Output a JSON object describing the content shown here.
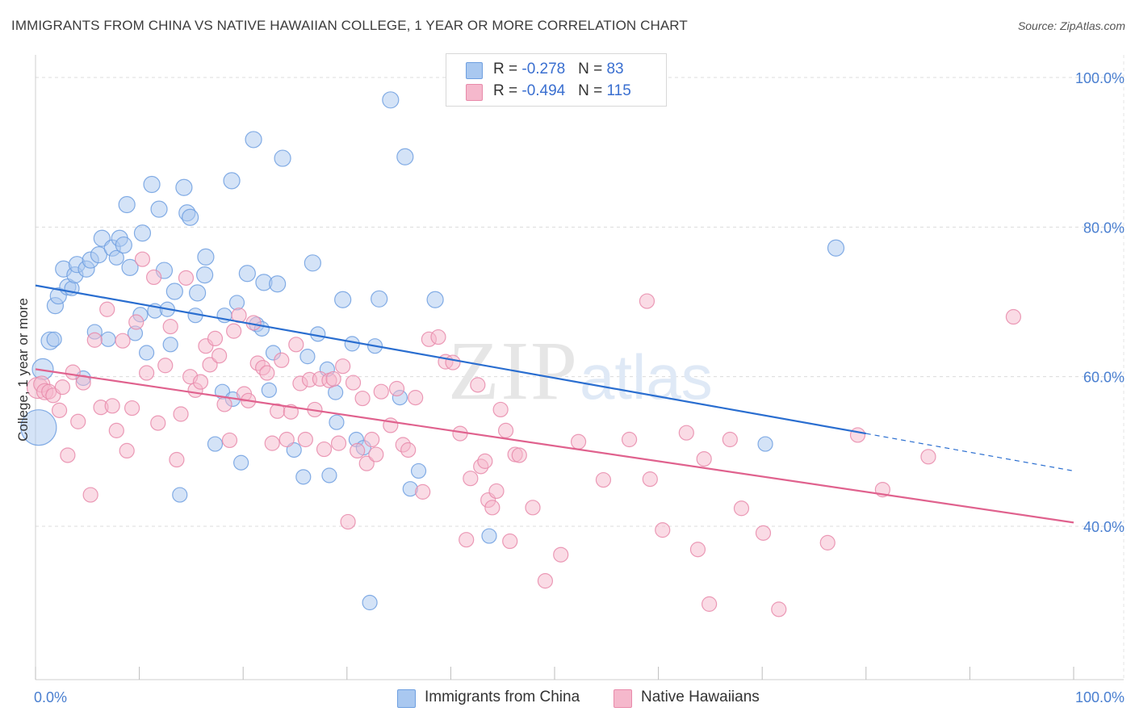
{
  "title": "IMMIGRANTS FROM CHINA VS NATIVE HAWAIIAN COLLEGE, 1 YEAR OR MORE CORRELATION CHART",
  "source": "Source: ZipAtlas.com",
  "watermark": {
    "zip": "ZIP",
    "atlas": "atlas"
  },
  "colors": {
    "blue_fill": "#a9c8f0",
    "blue_stroke": "#6e9fe0",
    "blue_line": "#2a6ed0",
    "pink_fill": "#f5b8cc",
    "pink_stroke": "#e88aaa",
    "pink_line": "#e0628e",
    "tick_label": "#4a7fd0"
  },
  "legend": {
    "rows": [
      {
        "r_label": "R = ",
        "r_value": "-0.278",
        "n_label": "N = ",
        "n_value": "83"
      },
      {
        "r_label": "R = ",
        "r_value": "-0.494",
        "n_label": "N = ",
        "n_value": "115"
      }
    ]
  },
  "chart_data": {
    "type": "scatter",
    "title": "IMMIGRANTS FROM CHINA VS NATIVE HAWAIIAN COLLEGE, 1 YEAR OR MORE CORRELATION CHART",
    "xlabel": "",
    "ylabel": "College, 1 year or more",
    "xlim": [
      0,
      100
    ],
    "ylim": [
      20,
      105
    ],
    "x_tick_labels": [
      "0.0%",
      "100.0%"
    ],
    "y_ticks": [
      {
        "value": 100,
        "label": "100.0%"
      },
      {
        "value": 80,
        "label": "80.0%"
      },
      {
        "value": 60,
        "label": "60.0%"
      },
      {
        "value": 40,
        "label": "40.0%"
      }
    ],
    "grid": true,
    "legend_position": "top-center",
    "series": [
      {
        "name": "Immigrants from China",
        "color": "#a9c8f0",
        "trend": {
          "x0": 0,
          "y0": 72.2,
          "x1": 80,
          "y1": 52.4,
          "dash_to_x": 100,
          "dash_to_y": 47.4
        },
        "points": [
          [
            0.3,
            53.2,
            22
          ],
          [
            0.7,
            61.0,
            13
          ],
          [
            1.4,
            64.8,
            11
          ],
          [
            1.8,
            65.0,
            9
          ],
          [
            1.9,
            69.5,
            10
          ],
          [
            2.2,
            70.8,
            10
          ],
          [
            2.7,
            74.4,
            10
          ],
          [
            3.1,
            72.0,
            10
          ],
          [
            3.5,
            71.8,
            9
          ],
          [
            3.8,
            73.6,
            10
          ],
          [
            4.0,
            75.0,
            10
          ],
          [
            4.6,
            59.8,
            9
          ],
          [
            4.9,
            74.4,
            10
          ],
          [
            5.3,
            75.6,
            10
          ],
          [
            5.7,
            66.0,
            9
          ],
          [
            6.1,
            76.3,
            10
          ],
          [
            6.4,
            78.5,
            10
          ],
          [
            7.0,
            65.0,
            9
          ],
          [
            7.4,
            77.2,
            10
          ],
          [
            7.8,
            75.9,
            9
          ],
          [
            8.1,
            78.5,
            10
          ],
          [
            8.5,
            77.6,
            10
          ],
          [
            8.8,
            83.0,
            10
          ],
          [
            9.1,
            74.6,
            10
          ],
          [
            9.6,
            65.8,
            9
          ],
          [
            10.1,
            68.3,
            9
          ],
          [
            10.3,
            79.2,
            10
          ],
          [
            10.7,
            63.2,
            9
          ],
          [
            11.2,
            85.7,
            10
          ],
          [
            11.5,
            68.8,
            9
          ],
          [
            11.9,
            82.4,
            10
          ],
          [
            12.4,
            74.2,
            10
          ],
          [
            12.7,
            69.0,
            9
          ],
          [
            13.0,
            64.3,
            9
          ],
          [
            13.4,
            71.4,
            10
          ],
          [
            13.9,
            44.2,
            9
          ],
          [
            14.3,
            85.3,
            10
          ],
          [
            14.6,
            81.9,
            10
          ],
          [
            14.9,
            81.3,
            10
          ],
          [
            15.4,
            68.2,
            9
          ],
          [
            15.6,
            71.2,
            10
          ],
          [
            16.3,
            73.6,
            10
          ],
          [
            16.4,
            76.0,
            10
          ],
          [
            17.3,
            51.0,
            9
          ],
          [
            18.0,
            58.0,
            9
          ],
          [
            18.2,
            68.2,
            9
          ],
          [
            18.9,
            86.2,
            10
          ],
          [
            19.0,
            57.0,
            9
          ],
          [
            19.4,
            69.9,
            9
          ],
          [
            19.8,
            48.5,
            9
          ],
          [
            20.4,
            73.8,
            10
          ],
          [
            21.0,
            91.7,
            10
          ],
          [
            21.3,
            67.0,
            9
          ],
          [
            21.8,
            66.4,
            9
          ],
          [
            22.0,
            72.6,
            10
          ],
          [
            22.5,
            58.2,
            9
          ],
          [
            22.9,
            63.2,
            9
          ],
          [
            23.3,
            72.4,
            10
          ],
          [
            23.8,
            89.2,
            10
          ],
          [
            24.9,
            50.2,
            9
          ],
          [
            25.8,
            46.6,
            9
          ],
          [
            26.2,
            62.7,
            9
          ],
          [
            26.7,
            75.2,
            10
          ],
          [
            27.2,
            65.7,
            9
          ],
          [
            28.1,
            61.0,
            9
          ],
          [
            28.3,
            46.8,
            9
          ],
          [
            28.9,
            57.9,
            9
          ],
          [
            29.0,
            53.9,
            9
          ],
          [
            29.6,
            70.3,
            10
          ],
          [
            30.5,
            64.4,
            9
          ],
          [
            30.9,
            51.6,
            9
          ],
          [
            31.6,
            50.5,
            9
          ],
          [
            32.2,
            29.8,
            9
          ],
          [
            32.7,
            64.1,
            9
          ],
          [
            33.1,
            70.4,
            10
          ],
          [
            34.2,
            97.0,
            10
          ],
          [
            35.1,
            57.2,
            9
          ],
          [
            35.6,
            89.4,
            10
          ],
          [
            36.1,
            45.0,
            9
          ],
          [
            36.9,
            47.4,
            9
          ],
          [
            38.5,
            70.3,
            10
          ],
          [
            43.7,
            38.7,
            9
          ],
          [
            70.3,
            51.0,
            9
          ],
          [
            77.1,
            77.2,
            10
          ]
        ]
      },
      {
        "name": "Native Hawaiians",
        "color": "#f5b8cc",
        "trend": {
          "x0": 0,
          "y0": 61.0,
          "x1": 100,
          "y1": 40.5
        },
        "points": [
          [
            0.2,
            58.5,
            13
          ],
          [
            0.6,
            59.0,
            10
          ],
          [
            0.9,
            58.0,
            10
          ],
          [
            1.3,
            58.0,
            9
          ],
          [
            1.7,
            57.5,
            9
          ],
          [
            2.3,
            55.5,
            9
          ],
          [
            2.6,
            58.6,
            9
          ],
          [
            3.1,
            49.5,
            9
          ],
          [
            3.6,
            60.6,
            9
          ],
          [
            4.1,
            54.0,
            9
          ],
          [
            4.6,
            59.2,
            9
          ],
          [
            5.3,
            44.2,
            9
          ],
          [
            5.7,
            64.9,
            9
          ],
          [
            6.3,
            55.9,
            9
          ],
          [
            6.9,
            69.0,
            9
          ],
          [
            7.4,
            56.1,
            9
          ],
          [
            7.8,
            52.8,
            9
          ],
          [
            8.4,
            64.8,
            9
          ],
          [
            8.8,
            50.1,
            9
          ],
          [
            9.3,
            55.8,
            9
          ],
          [
            9.7,
            67.3,
            9
          ],
          [
            10.3,
            75.7,
            9
          ],
          [
            10.7,
            60.5,
            9
          ],
          [
            11.4,
            73.3,
            9
          ],
          [
            11.8,
            53.8,
            9
          ],
          [
            12.5,
            61.5,
            9
          ],
          [
            13.0,
            66.7,
            9
          ],
          [
            13.6,
            48.9,
            9
          ],
          [
            14.0,
            55.0,
            9
          ],
          [
            14.5,
            73.2,
            9
          ],
          [
            14.9,
            60.0,
            9
          ],
          [
            15.4,
            58.2,
            9
          ],
          [
            15.9,
            59.3,
            9
          ],
          [
            16.4,
            64.1,
            9
          ],
          [
            16.8,
            61.6,
            9
          ],
          [
            17.3,
            65.1,
            9
          ],
          [
            17.7,
            62.8,
            9
          ],
          [
            18.2,
            56.3,
            9
          ],
          [
            18.7,
            51.5,
            9
          ],
          [
            19.1,
            66.1,
            9
          ],
          [
            19.6,
            68.2,
            9
          ],
          [
            20.1,
            57.7,
            9
          ],
          [
            20.5,
            56.8,
            9
          ],
          [
            21.0,
            67.2,
            9
          ],
          [
            21.4,
            61.8,
            9
          ],
          [
            21.9,
            61.2,
            9
          ],
          [
            22.3,
            60.5,
            9
          ],
          [
            22.8,
            51.1,
            9
          ],
          [
            23.3,
            55.4,
            9
          ],
          [
            23.7,
            62.2,
            9
          ],
          [
            24.2,
            51.6,
            9
          ],
          [
            24.6,
            55.3,
            9
          ],
          [
            25.1,
            64.3,
            9
          ],
          [
            25.5,
            59.1,
            9
          ],
          [
            26.0,
            51.6,
            9
          ],
          [
            26.4,
            59.6,
            9
          ],
          [
            26.9,
            55.6,
            9
          ],
          [
            27.4,
            59.7,
            9
          ],
          [
            27.8,
            50.3,
            9
          ],
          [
            28.3,
            59.5,
            9
          ],
          [
            28.7,
            59.7,
            9
          ],
          [
            29.2,
            51.1,
            9
          ],
          [
            29.6,
            61.4,
            9
          ],
          [
            30.1,
            40.6,
            9
          ],
          [
            30.6,
            59.2,
            9
          ],
          [
            31.0,
            50.1,
            9
          ],
          [
            31.5,
            57.1,
            9
          ],
          [
            31.9,
            48.4,
            9
          ],
          [
            32.4,
            51.6,
            9
          ],
          [
            32.8,
            49.6,
            9
          ],
          [
            33.3,
            58.0,
            9
          ],
          [
            34.2,
            53.5,
            9
          ],
          [
            34.8,
            58.4,
            9
          ],
          [
            35.4,
            50.9,
            9
          ],
          [
            35.9,
            50.2,
            9
          ],
          [
            36.6,
            57.2,
            9
          ],
          [
            37.3,
            44.6,
            9
          ],
          [
            37.9,
            65.0,
            9
          ],
          [
            38.8,
            65.3,
            9
          ],
          [
            39.5,
            62.0,
            9
          ],
          [
            40.2,
            61.9,
            9
          ],
          [
            40.9,
            52.4,
            9
          ],
          [
            41.5,
            38.2,
            9
          ],
          [
            41.9,
            46.4,
            9
          ],
          [
            42.6,
            58.9,
            9
          ],
          [
            42.9,
            48.0,
            9
          ],
          [
            43.3,
            48.7,
            9
          ],
          [
            43.6,
            43.5,
            9
          ],
          [
            44.0,
            42.5,
            9
          ],
          [
            44.4,
            44.7,
            9
          ],
          [
            44.8,
            55.6,
            9
          ],
          [
            45.3,
            52.8,
            9
          ],
          [
            45.7,
            38.0,
            9
          ],
          [
            46.2,
            49.6,
            9
          ],
          [
            46.6,
            49.5,
            9
          ],
          [
            47.9,
            42.5,
            9
          ],
          [
            49.1,
            32.7,
            9
          ],
          [
            50.6,
            36.2,
            9
          ],
          [
            52.3,
            51.3,
            9
          ],
          [
            54.7,
            46.2,
            9
          ],
          [
            57.2,
            51.6,
            9
          ],
          [
            59.2,
            46.3,
            9
          ],
          [
            60.4,
            39.5,
            9
          ],
          [
            62.7,
            52.5,
            9
          ],
          [
            63.8,
            36.9,
            9
          ],
          [
            64.4,
            49.0,
            9
          ],
          [
            64.9,
            29.6,
            9
          ],
          [
            66.9,
            51.6,
            9
          ],
          [
            68.0,
            42.4,
            9
          ],
          [
            70.1,
            39.1,
            9
          ],
          [
            71.6,
            28.9,
            9
          ],
          [
            76.3,
            37.8,
            9
          ],
          [
            79.2,
            52.2,
            9
          ],
          [
            86.0,
            49.3,
            9
          ],
          [
            94.2,
            68.0,
            9
          ],
          [
            58.9,
            70.1,
            9
          ],
          [
            81.6,
            44.9,
            9
          ]
        ]
      }
    ]
  },
  "bottom_legend": [
    {
      "label": "Immigrants from China"
    },
    {
      "label": "Native Hawaiians"
    }
  ]
}
